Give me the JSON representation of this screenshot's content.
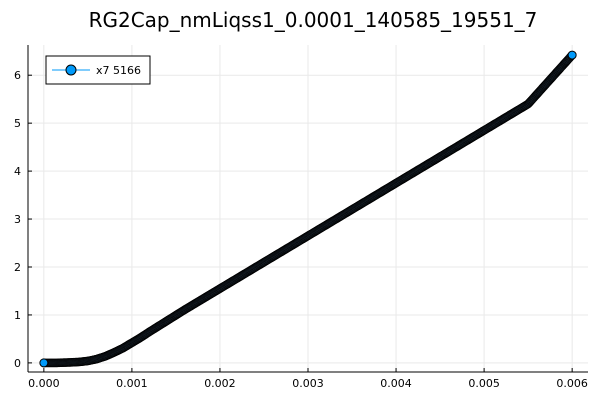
{
  "chart_data": {
    "type": "scatter",
    "title": "RG2Cap_nmLiqss1_0.0001_140585_19551_7",
    "xlabel": "",
    "ylabel": "",
    "xlim": [
      -0.00018,
      0.00618
    ],
    "ylim": [
      -0.19,
      6.63
    ],
    "xticks": [
      0.0,
      0.001,
      0.002,
      0.003,
      0.004,
      0.005,
      0.006
    ],
    "xtick_labels": [
      "0.000",
      "0.001",
      "0.002",
      "0.003",
      "0.004",
      "0.005",
      "0.006"
    ],
    "yticks": [
      0,
      1,
      2,
      3,
      4,
      5,
      6
    ],
    "ytick_labels": [
      "0",
      "1",
      "2",
      "3",
      "4",
      "5",
      "6"
    ],
    "grid": true,
    "legend_position": "top-left",
    "series": [
      {
        "name": "x7 5166",
        "color": "#009AFA",
        "line_color": "#009AFA",
        "marker_edge_color": "#000000",
        "x": [
          0.0,
          0.00015,
          0.0002,
          0.0003,
          0.0004,
          0.0005,
          0.0006,
          0.0007,
          0.0008,
          0.0009,
          0.001,
          0.0011,
          0.0012,
          0.0014,
          0.0016,
          0.0018,
          0.002,
          0.0025,
          0.003,
          0.0035,
          0.004,
          0.0045,
          0.005,
          0.0055,
          0.006
        ],
        "y": [
          0.0,
          0.0,
          0.005,
          0.01,
          0.02,
          0.04,
          0.08,
          0.14,
          0.22,
          0.31,
          0.42,
          0.53,
          0.65,
          0.88,
          1.11,
          1.33,
          1.55,
          2.1,
          2.65,
          3.2,
          3.75,
          4.3,
          4.85,
          5.4,
          6.42
        ]
      }
    ]
  }
}
